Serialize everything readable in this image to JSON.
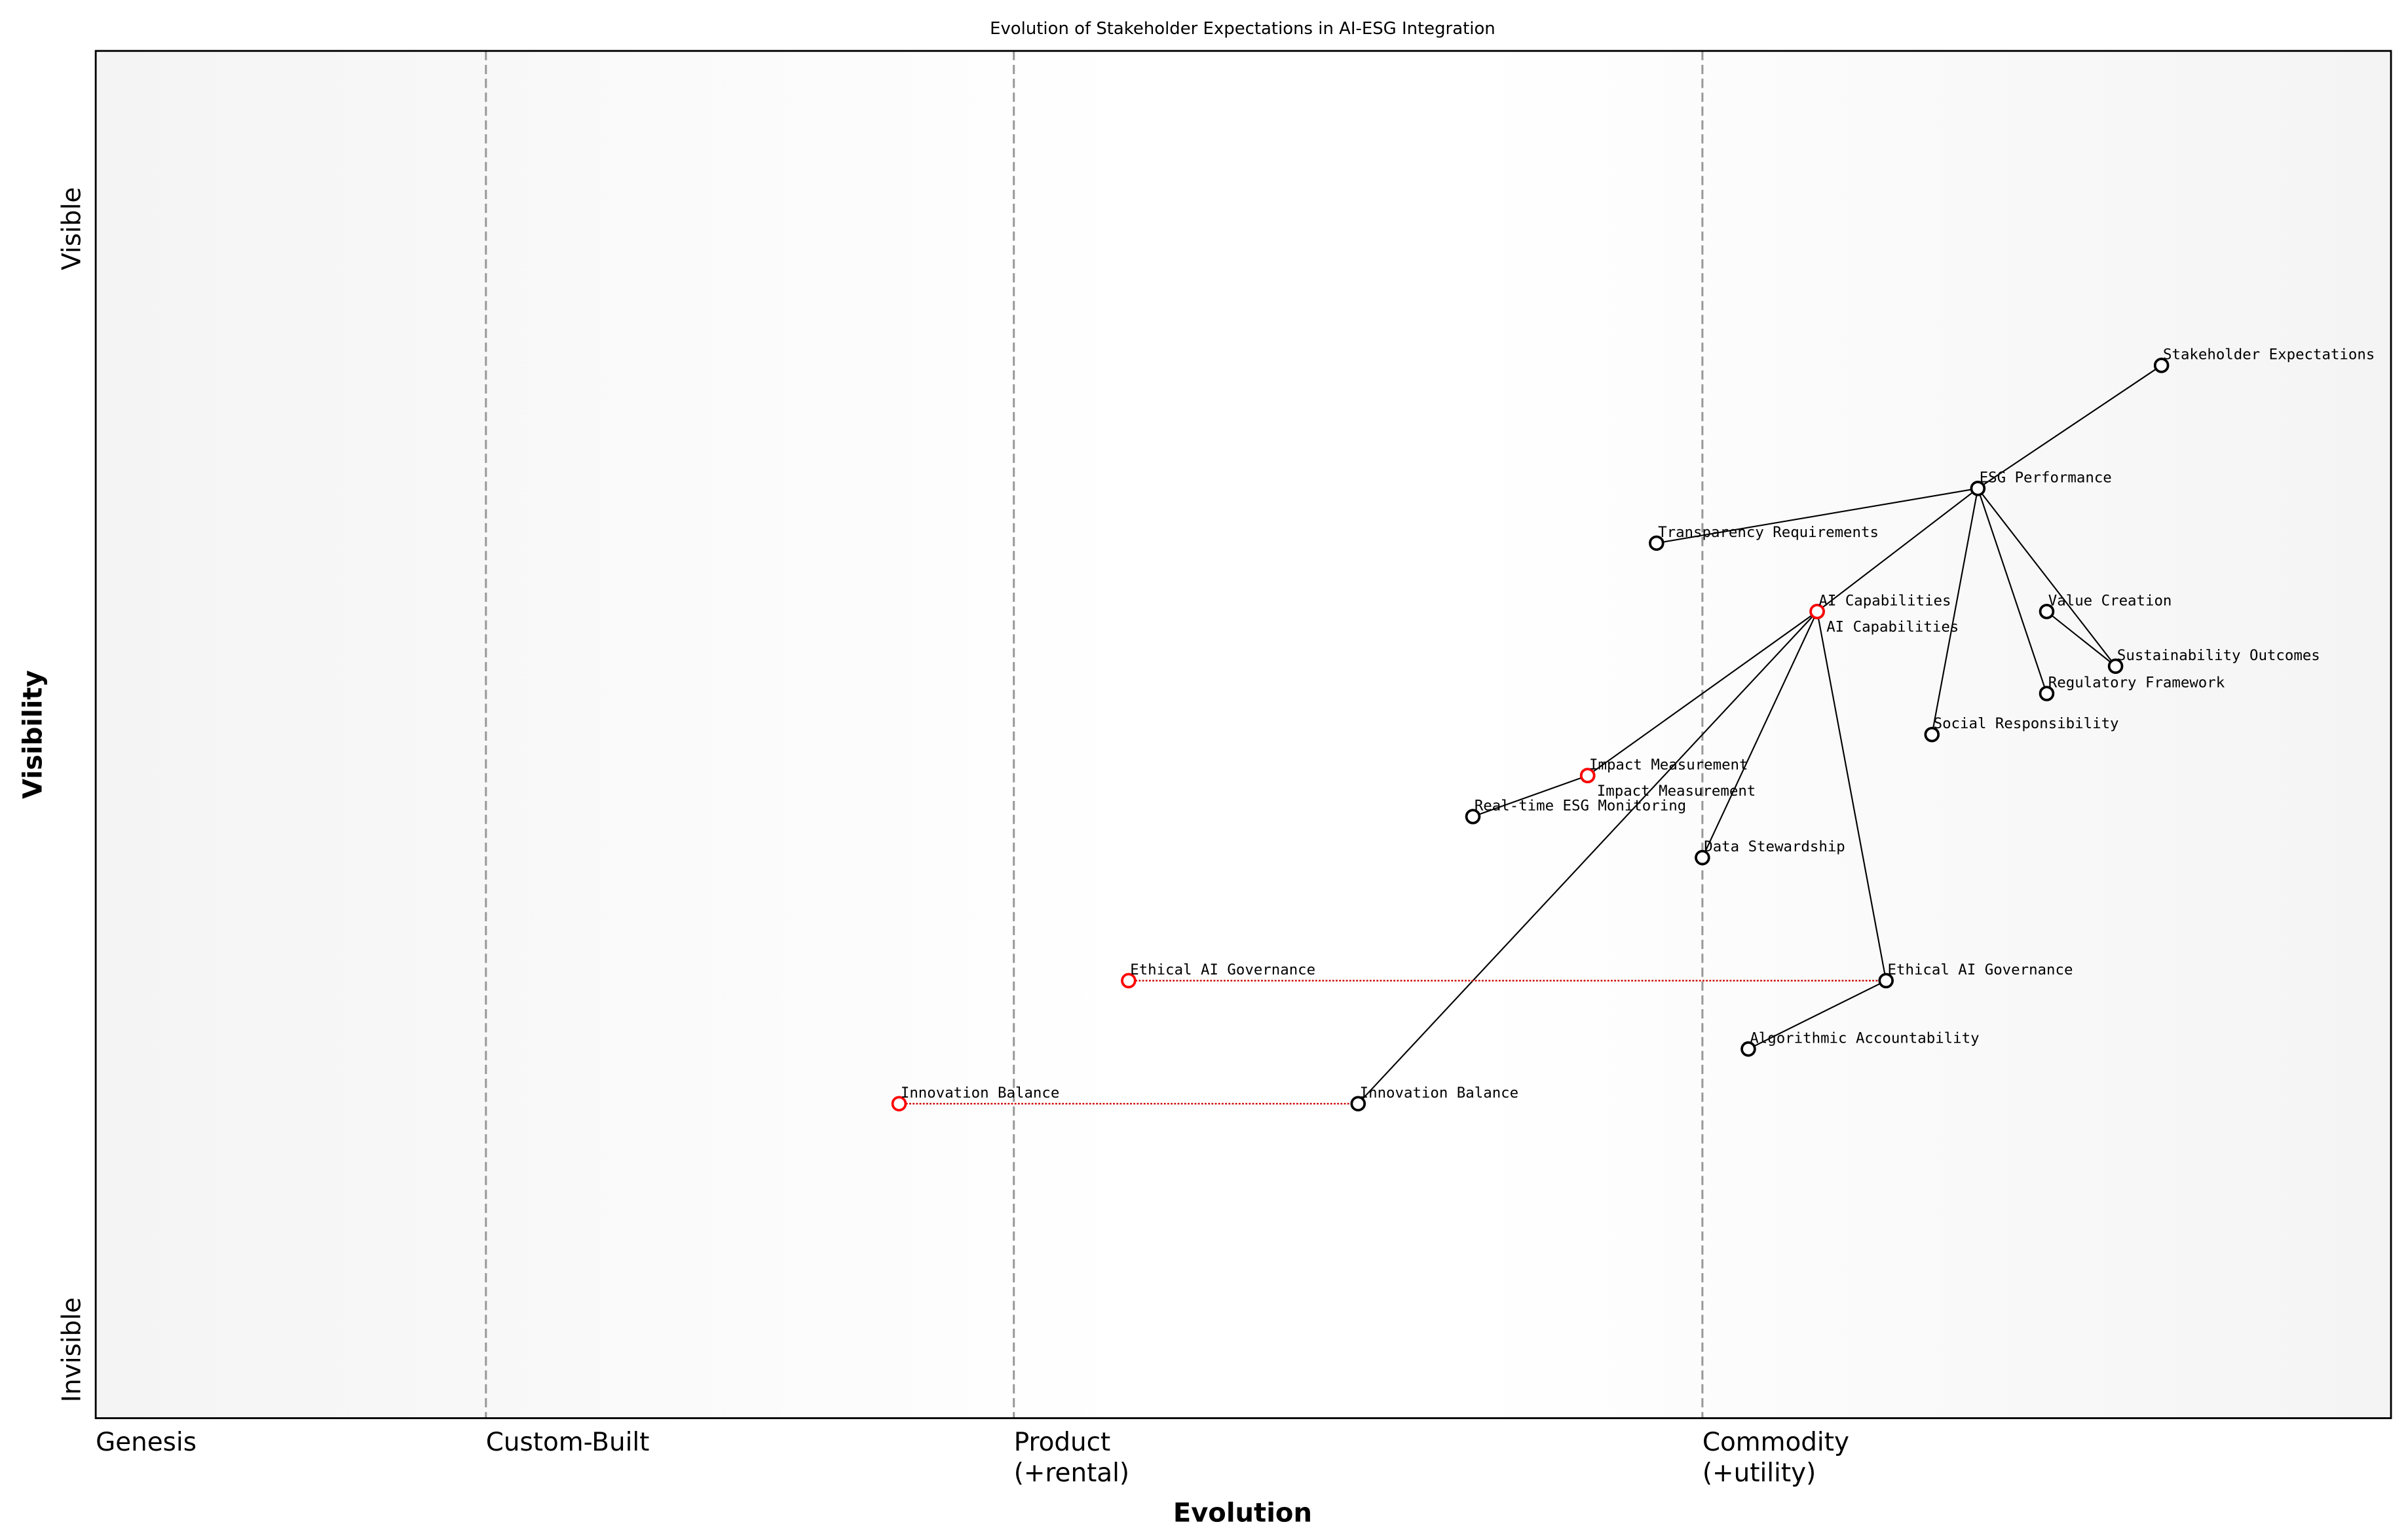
{
  "chart_data": {
    "type": "wardley-map",
    "title": "Evolution of Stakeholder Expectations in AI-ESG Integration",
    "xlabel": "Evolution",
    "ylabel": "Visibility",
    "xlim": [
      0,
      1
    ],
    "ylim": [
      0,
      1
    ],
    "y_ticks": [
      {
        "label": "Visible",
        "value": 0.87
      },
      {
        "label": "Invisible",
        "value": 0.05
      }
    ],
    "stages": [
      {
        "label": "Genesis",
        "sub": "",
        "x": 0.0,
        "divider": false
      },
      {
        "label": "Custom-Built",
        "sub": "",
        "x": 0.17,
        "divider": true
      },
      {
        "label": "Product",
        "sub": "(+rental)",
        "x": 0.4,
        "divider": true
      },
      {
        "label": "Commodity",
        "sub": "(+utility)",
        "x": 0.7,
        "divider": true
      }
    ],
    "components": [
      {
        "id": "stakeholder",
        "label": "Stakeholder Expectations",
        "x": 0.9,
        "y": 0.77
      },
      {
        "id": "esg",
        "label": "ESG Performance",
        "x": 0.82,
        "y": 0.68
      },
      {
        "id": "transparency",
        "label": "Transparency Requirements",
        "x": 0.68,
        "y": 0.64
      },
      {
        "id": "ai",
        "label": "AI Capabilities",
        "x": 0.75,
        "y": 0.59
      },
      {
        "id": "value",
        "label": "Value Creation",
        "x": 0.85,
        "y": 0.59
      },
      {
        "id": "sustainability",
        "label": "Sustainability Outcomes",
        "x": 0.88,
        "y": 0.55
      },
      {
        "id": "regulatory",
        "label": "Regulatory Framework",
        "x": 0.85,
        "y": 0.53
      },
      {
        "id": "social",
        "label": "Social Responsibility",
        "x": 0.8,
        "y": 0.5
      },
      {
        "id": "impact",
        "label": "Impact Measurement",
        "x": 0.65,
        "y": 0.47
      },
      {
        "id": "realtime",
        "label": "Real-time ESG Monitoring",
        "x": 0.6,
        "y": 0.44
      },
      {
        "id": "data",
        "label": "Data Stewardship",
        "x": 0.7,
        "y": 0.41
      },
      {
        "id": "ethical",
        "label": "Ethical AI Governance",
        "x": 0.78,
        "y": 0.32
      },
      {
        "id": "algorithmic",
        "label": "Algorithmic Accountability",
        "x": 0.72,
        "y": 0.27
      },
      {
        "id": "innovation",
        "label": "Innovation Balance",
        "x": 0.55,
        "y": 0.23
      }
    ],
    "evolved_components": [
      {
        "label": "AI Capabilities",
        "x": 0.75,
        "y": 0.59,
        "from": "ai"
      },
      {
        "label": "Impact Measurement",
        "x": 0.65,
        "y": 0.47,
        "from": "impact"
      },
      {
        "label": "Ethical AI Governance",
        "x": 0.45,
        "y": 0.32,
        "from": "ethical"
      },
      {
        "label": "Innovation Balance",
        "x": 0.35,
        "y": 0.23,
        "from": "innovation"
      }
    ],
    "links": [
      [
        "stakeholder",
        "esg"
      ],
      [
        "esg",
        "transparency"
      ],
      [
        "esg",
        "ai"
      ],
      [
        "esg",
        "social"
      ],
      [
        "esg",
        "regulatory"
      ],
      [
        "esg",
        "sustainability"
      ],
      [
        "value",
        "sustainability"
      ],
      [
        "ai",
        "impact"
      ],
      [
        "impact",
        "realtime"
      ],
      [
        "ai",
        "innovation"
      ],
      [
        "ai",
        "data"
      ],
      [
        "ai",
        "ethical"
      ],
      [
        "ethical",
        "algorithmic"
      ]
    ],
    "colors": {
      "node": "#000000",
      "evolved_node": "#ff0000",
      "evolution_link": "#cc0000",
      "divider": "#999999",
      "edge_bg": "#f4f4f4",
      "center_bg": "#ffffff"
    }
  }
}
